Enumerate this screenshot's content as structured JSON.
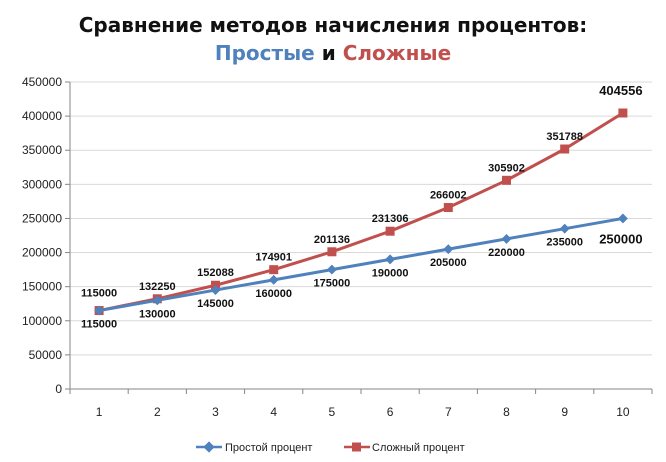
{
  "title": {
    "line1": "Сравнение методов начисления процентов:",
    "part_simple": "Простые",
    "part_and": " и ",
    "part_compound": "Сложные"
  },
  "colors": {
    "simple": "#4f81bd",
    "compound": "#c0504d",
    "gridline": "#d9d9d9",
    "axis": "#868686"
  },
  "chart_data": {
    "type": "line",
    "categories": [
      "1",
      "2",
      "3",
      "4",
      "5",
      "6",
      "7",
      "8",
      "9",
      "10"
    ],
    "series": [
      {
        "name": "Простой процент",
        "marker": "diamond",
        "values": [
          115000,
          130000,
          145000,
          160000,
          175000,
          190000,
          205000,
          220000,
          235000,
          250000
        ],
        "labels": [
          "115000",
          "130000",
          "145000",
          "160000",
          "175000",
          "190000",
          "205000",
          "220000",
          "235000",
          "250000"
        ]
      },
      {
        "name": "Сложный процент",
        "marker": "square",
        "values": [
          115000,
          132250,
          152088,
          174901,
          201136,
          231306,
          266002,
          305902,
          351788,
          404556
        ],
        "labels": [
          "115000",
          "132250",
          "152088",
          "174901",
          "201136",
          "231306",
          "266002",
          "305902",
          "351788",
          "404556"
        ]
      }
    ],
    "ylim": [
      0,
      450000
    ],
    "yticks": [
      "0",
      "50000",
      "100000",
      "150000",
      "200000",
      "250000",
      "300000",
      "350000",
      "400000",
      "450000"
    ],
    "grid": true,
    "legend": "bottom"
  }
}
